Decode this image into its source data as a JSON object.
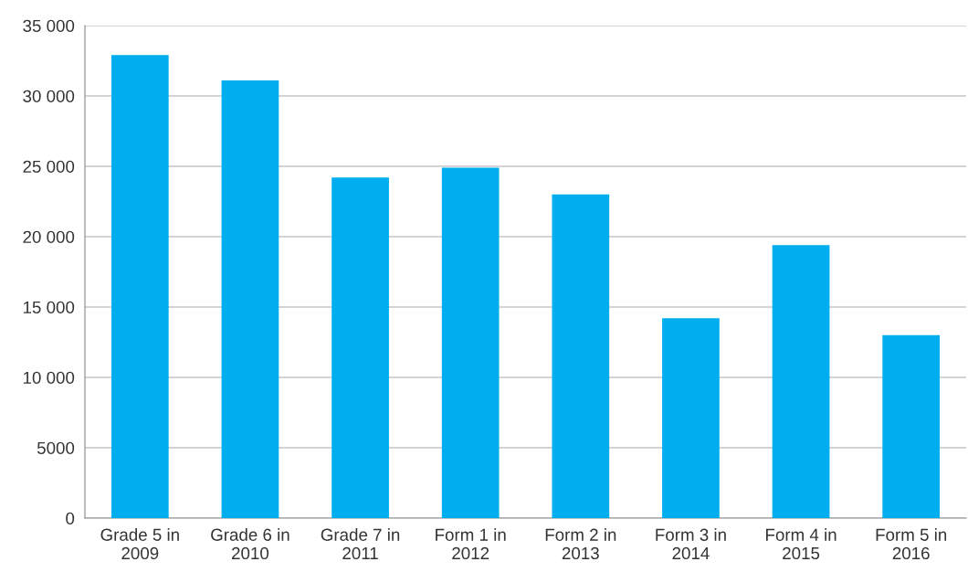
{
  "chart_data": {
    "type": "bar",
    "categories": [
      "Grade 5 in\n2009",
      "Grade 6 in\n2010",
      "Grade 7 in\n2011",
      "Form 1 in\n2012",
      "Form 2 in\n2013",
      "Form 3 in\n2014",
      "Form 4 in\n2015",
      "Form 5 in\n2016"
    ],
    "values": [
      32900,
      31100,
      24200,
      24900,
      23000,
      14200,
      19400,
      13000
    ],
    "color": "#00aeef",
    "ylim": [
      0,
      35000
    ],
    "yticks": [
      0,
      {
        "value": 5000,
        "label": "5000"
      },
      {
        "value": 10000,
        "label": "10 000"
      },
      {
        "value": 15000,
        "label": "15 000"
      },
      {
        "value": 20000,
        "label": "20 000"
      },
      {
        "value": 25000,
        "label": "25 000"
      },
      {
        "value": 30000,
        "label": "30 000"
      },
      {
        "value": 35000,
        "label": "35 000"
      }
    ],
    "grid": "y"
  }
}
